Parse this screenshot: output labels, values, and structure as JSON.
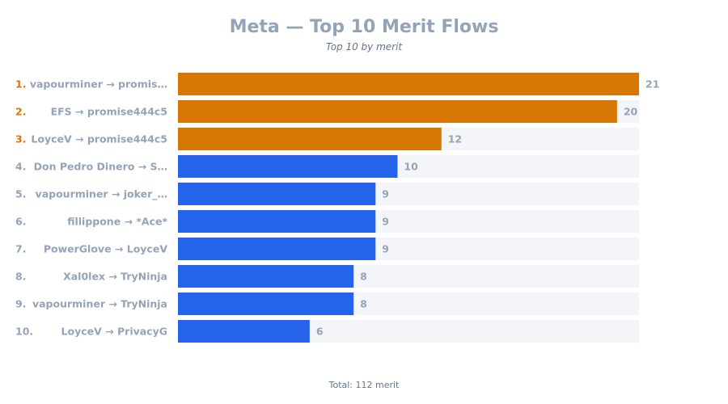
{
  "chart_data": {
    "type": "bar",
    "orientation": "horizontal",
    "title": "Meta — Top 10 Merit Flows",
    "subtitle": "Top 10 by merit",
    "categories": [
      "vapourminer → promis…",
      "EFS → promise444c5",
      "LoyceV → promise444c5",
      "Don Pedro Dinero → S…",
      "vapourminer → joker_…",
      "fillippone → *Ace*",
      "PowerGlove → LoyceV",
      "Xal0lex → TryNinja",
      "vapourminer → TryNinja",
      "LoyceV → PrivacyG"
    ],
    "ranks": [
      "1.",
      "2.",
      "3.",
      "4.",
      "5.",
      "6.",
      "7.",
      "8.",
      "9.",
      "10."
    ],
    "values": [
      21,
      20,
      12,
      10,
      9,
      9,
      9,
      8,
      8,
      6
    ],
    "xlim": [
      0,
      21
    ],
    "highlight_top": 3,
    "colors": {
      "highlight": "#d97706",
      "normal": "#2563eb",
      "track": "#f3f5f8",
      "highlight_rank": "#d97706",
      "normal_rank": "#94a3b8"
    },
    "footer": "Total: 112 merit"
  }
}
